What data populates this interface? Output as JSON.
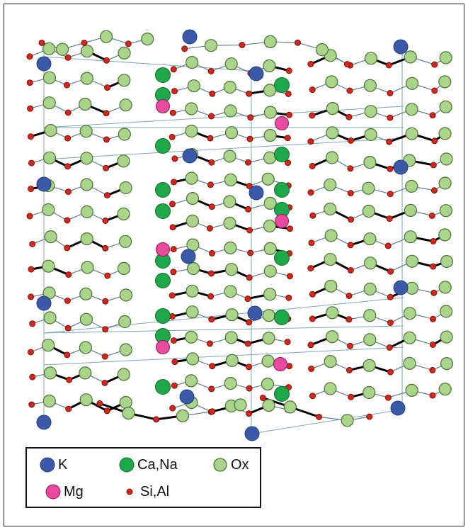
{
  "legend": {
    "items": [
      {
        "label": "K",
        "symbol": "k",
        "fill": "#3a5aa8",
        "stroke": "#223a7a"
      },
      {
        "label": "Ca,Na",
        "symbol": "ca",
        "fill": "#1fa84a",
        "stroke": "#0e6a2a"
      },
      {
        "label": "Ox",
        "symbol": "ox",
        "fill": "#a9d48a",
        "stroke": "#4e6e3a"
      },
      {
        "label": "Mg",
        "symbol": "mg",
        "fill": "#e84a9e",
        "stroke": "#8a1a5a"
      },
      {
        "label": "Si,Al",
        "symbol": "si",
        "fill": "#d0281c",
        "stroke": "#7a120c"
      }
    ]
  },
  "colors": {
    "cell_line": "#7fa7b7",
    "bond_thin": "#5f7f8f",
    "bond_thick": "#000000"
  }
}
